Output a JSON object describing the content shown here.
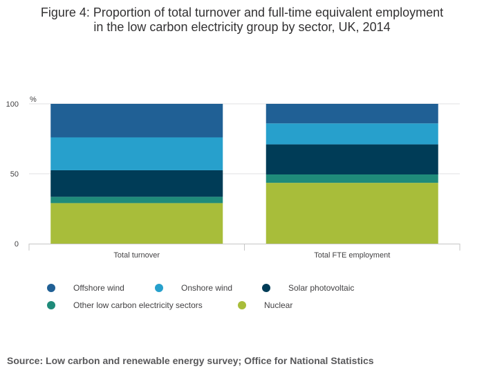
{
  "title_line1": "Figure 4: Proportion of total turnover and full-time equivalent employment",
  "title_line2": "in the low carbon electricity group by sector, UK, 2014",
  "source": "Source: Low carbon and renewable energy survey; Office for National Statistics",
  "chart_data": {
    "type": "bar",
    "stacked": true,
    "ylabel": "%",
    "ylim": [
      0,
      100
    ],
    "yticks": [
      0,
      50,
      100
    ],
    "grid": true,
    "categories": [
      "Total turnover",
      "Total FTE employment"
    ],
    "series": [
      {
        "name": "Nuclear",
        "color": "#a8bd3a",
        "values": [
          29,
          43.5
        ]
      },
      {
        "name": "Other low carbon electricity sectors",
        "color": "#1f8b7a",
        "values": [
          4.5,
          6
        ]
      },
      {
        "name": "Solar photovoltaic",
        "color": "#003c57",
        "values": [
          19,
          21.5
        ]
      },
      {
        "name": "Onshore wind",
        "color": "#27a0cc",
        "values": [
          23.5,
          15
        ]
      },
      {
        "name": "Offshore wind",
        "color": "#206095",
        "values": [
          24,
          14
        ]
      }
    ],
    "legend": [
      "Offshore wind",
      "Onshore wind",
      "Solar photovoltaic",
      "Other low carbon electricity sectors",
      "Nuclear"
    ],
    "legend_position": "bottom"
  }
}
